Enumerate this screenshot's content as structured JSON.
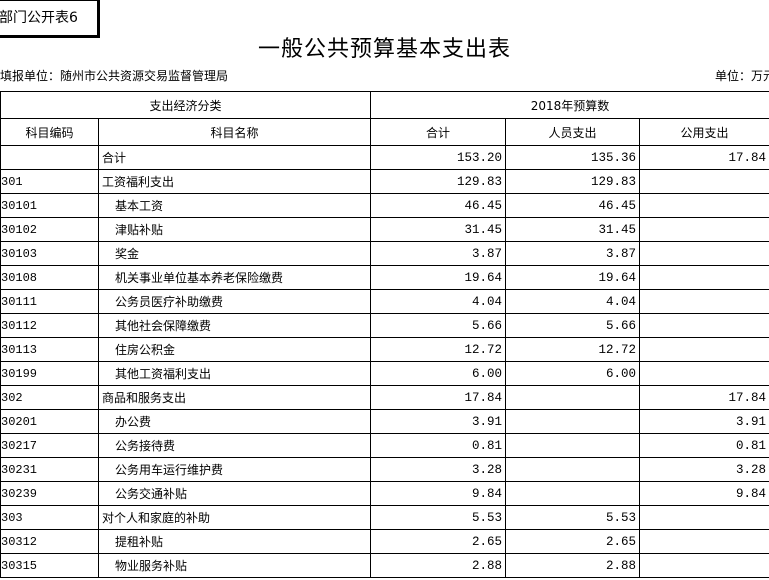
{
  "header": {
    "tag": "部门公开表6",
    "title": "一般公共预算基本支出表",
    "unit_org": "填报单位：随州市公共资源交易监督管理局",
    "unit": "单位：万元"
  },
  "table": {
    "group_headers": [
      "支出经济分类",
      "2018年预算数"
    ],
    "columns": [
      "科目编码",
      "科目名称",
      "合计",
      "人员支出",
      "公用支出"
    ],
    "rows": [
      [
        null,
        "合计",
        "153.20",
        "135.36",
        "17.84"
      ],
      [
        "301",
        "工资福利支出",
        "129.83",
        "129.83",
        null
      ],
      [
        "30101",
        "基本工资",
        "46.45",
        "46.45",
        null
      ],
      [
        "30102",
        "津贴补贴",
        "31.45",
        "31.45",
        null
      ],
      [
        "30103",
        "奖金",
        "3.87",
        "3.87",
        null
      ],
      [
        "30108",
        "机关事业单位基本养老保险缴费",
        "19.64",
        "19.64",
        null
      ],
      [
        "30111",
        "公务员医疗补助缴费",
        "4.04",
        "4.04",
        null
      ],
      [
        "30112",
        "其他社会保障缴费",
        "5.66",
        "5.66",
        null
      ],
      [
        "30113",
        "住房公积金",
        "12.72",
        "12.72",
        null
      ],
      [
        "30199",
        "其他工资福利支出",
        "6.00",
        "6.00",
        null
      ],
      [
        "302",
        "商品和服务支出",
        "17.84",
        null,
        "17.84"
      ],
      [
        "30201",
        "办公费",
        "3.91",
        null,
        "3.91"
      ],
      [
        "30217",
        "公务接待费",
        "0.81",
        null,
        "0.81"
      ],
      [
        "30231",
        "公务用车运行维护费",
        "3.28",
        null,
        "3.28"
      ],
      [
        "30239",
        "公务交通补贴",
        "9.84",
        null,
        "9.84"
      ],
      [
        "303",
        "对个人和家庭的补助",
        "5.53",
        "5.53",
        null
      ],
      [
        "30312",
        "提租补贴",
        "2.65",
        "2.65",
        null
      ],
      [
        "30315",
        "物业服务补贴",
        "2.88",
        "2.88",
        null
      ]
    ]
  }
}
